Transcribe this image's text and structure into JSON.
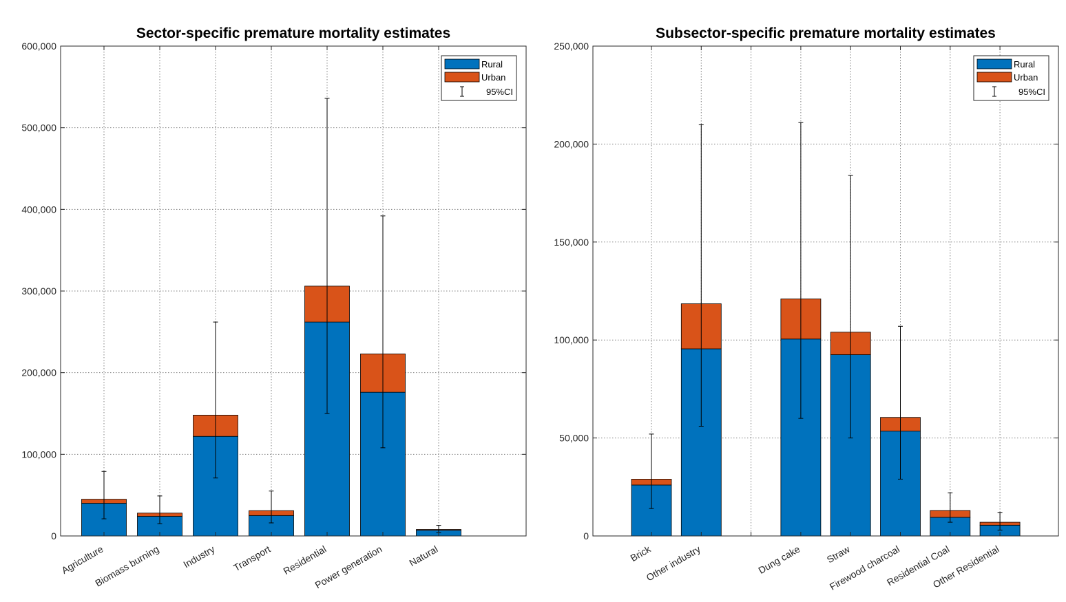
{
  "colors": {
    "rural": "#0072BD",
    "urban": "#D95319",
    "grid": "#808080",
    "axis": "#262626"
  },
  "chart_data": [
    {
      "type": "bar",
      "stacked": true,
      "title": "Sector-specific premature mortality estimates",
      "categories": [
        "Agriculture",
        "Biomass burning",
        "Industry",
        "Transport",
        "Residential",
        "Power generation",
        "Natural"
      ],
      "series": [
        {
          "name": "Rural",
          "values": [
            40000,
            24000,
            122000,
            25000,
            262000,
            176000,
            7000
          ]
        },
        {
          "name": "Urban",
          "values": [
            5000,
            4000,
            26000,
            6000,
            44000,
            47000,
            1000
          ]
        }
      ],
      "ci": [
        [
          21000,
          79000
        ],
        [
          15000,
          49000
        ],
        [
          71000,
          262000
        ],
        [
          16000,
          55000
        ],
        [
          150000,
          536000
        ],
        [
          108000,
          392000
        ],
        [
          4000,
          13000
        ]
      ],
      "ylim": [
        0,
        600000
      ],
      "yticks": [
        0,
        100000,
        200000,
        300000,
        400000,
        500000,
        600000
      ],
      "ytick_labels": [
        "0",
        "100,000",
        "200,000",
        "300,000",
        "400,000",
        "500,000",
        "600,000"
      ],
      "grid": true,
      "legend": {
        "placement": "top-right",
        "entries": [
          "Rural",
          "Urban",
          "95%CI"
        ]
      }
    },
    {
      "type": "bar",
      "stacked": true,
      "title": "Subsector-specific premature mortality estimates",
      "categories": [
        "Brick",
        "Other industry",
        "",
        "Dung cake",
        "Straw",
        "Firewood charcoal",
        "Residential Coal",
        "Other Residential"
      ],
      "series": [
        {
          "name": "Rural",
          "values": [
            26000,
            95500,
            0,
            100500,
            92500,
            53500,
            9500,
            5500
          ]
        },
        {
          "name": "Urban",
          "values": [
            3000,
            23000,
            0,
            20500,
            11500,
            7000,
            3500,
            1500
          ]
        }
      ],
      "ci": [
        [
          14000,
          52000
        ],
        [
          56000,
          210000
        ],
        [
          0,
          0
        ],
        [
          60000,
          211000
        ],
        [
          50000,
          184000
        ],
        [
          29000,
          107000
        ],
        [
          7000,
          22000
        ],
        [
          3000,
          12000
        ]
      ],
      "ylim": [
        0,
        250000
      ],
      "yticks": [
        0,
        50000,
        100000,
        150000,
        200000,
        250000
      ],
      "ytick_labels": [
        "0",
        "50,000",
        "100,000",
        "150,000",
        "200,000",
        "250,000"
      ],
      "grid": true,
      "legend": {
        "placement": "top-right",
        "entries": [
          "Rural",
          "Urban",
          "95%CI"
        ]
      }
    }
  ]
}
